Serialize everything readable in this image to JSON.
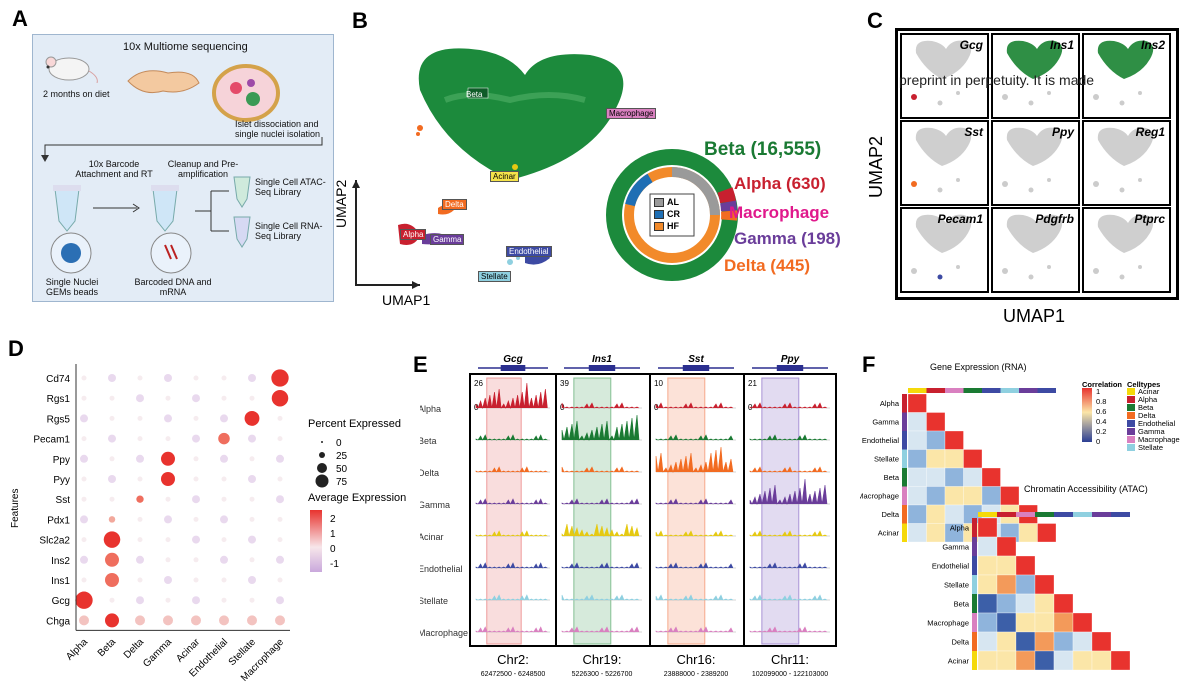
{
  "panels": {
    "a": "A",
    "b": "B",
    "c": "C",
    "d": "D",
    "e": "E",
    "f": "F"
  },
  "panel_a": {
    "title": "10x Multiome sequencing",
    "diet": "2 months on diet",
    "dissociation": "Islet dissociation and single nuclei isolation",
    "barcode": "10x Barcode Attachment and RT",
    "cleanup": "Cleanup and Pre-amplification",
    "atac": "Single Cell ATAC-Seq Library",
    "rna": "Single Cell RNA-Seq Library",
    "gems": "Single Nuclei GEMs beads",
    "dna": "Barcoded DNA and mRNA"
  },
  "panel_b": {
    "clusters": {
      "beta": "Beta",
      "macrophage": "Macrophage",
      "acinar": "Acinar",
      "delta": "Delta",
      "alpha": "Alpha",
      "gamma": "Gamma",
      "endothelial": "Endothelial",
      "stellate": "Stellate"
    },
    "umap1": "UMAP1",
    "umap2": "UMAP2",
    "donut_legend": [
      "AL",
      "CR",
      "HF"
    ],
    "counts": {
      "beta": "Beta (16,555)",
      "alpha": "Alpha (630)",
      "macrophage": "Macrophage",
      "gamma": "Gamma (198)",
      "delta": "Delta (445)"
    },
    "colors": {
      "beta": "#1a7a33",
      "alpha": "#c8202f",
      "macrophage": "#e0198c",
      "gamma": "#6a3d9a",
      "delta": "#f26b21"
    }
  },
  "panel_c": {
    "genes": [
      "Gcg",
      "Ins1",
      "Ins2",
      "Sst",
      "Ppy",
      "Reg1",
      "Pecam1",
      "Pdgfrb",
      "Ptprc"
    ],
    "overlay": "preprint in perpetuity. It is made",
    "umap1": "UMAP1",
    "umap2": "UMAP2"
  },
  "panel_d": {
    "features": [
      "Cd74",
      "Rgs1",
      "Rgs5",
      "Pecam1",
      "Ppy",
      "Pyy",
      "Sst",
      "Pdx1",
      "Slc2a2",
      "Ins2",
      "Ins1",
      "Gcg",
      "Chga"
    ],
    "celltypes": [
      "Alpha",
      "Beta",
      "Delta",
      "Gamma",
      "Acinar",
      "Endothelial",
      "Stellate",
      "Macrophage"
    ],
    "ylabel": "Features",
    "pct_title": "Percent Expressed",
    "pct_values": [
      "0",
      "25",
      "50",
      "75"
    ],
    "avg_title": "Average Expression",
    "avg_ticks": [
      "2",
      "1",
      "0",
      "-1"
    ]
  },
  "panel_e": {
    "genes": [
      "Gcg",
      "Ins1",
      "Sst",
      "Ppy"
    ],
    "scales": [
      "26",
      "39",
      "10",
      "21"
    ],
    "zero": "0",
    "tracks": [
      "Alpha",
      "Beta",
      "Delta",
      "Gamma",
      "Acinar",
      "Endothelial",
      "Stellate",
      "Macrophage"
    ],
    "chrom": [
      {
        "chr": "Chr2:",
        "range": "62472500 - 6248500"
      },
      {
        "chr": "Chr19:",
        "range": "5226300 - 5226700"
      },
      {
        "chr": "Chr16:",
        "range": "23888000 - 2389200"
      },
      {
        "chr": "Chr11:",
        "range": "102099000 - 122103000"
      }
    ]
  },
  "panel_f": {
    "rna_title": "Gene Expression (RNA)",
    "atac_title": "Chromatin Accessibility (ATAC)",
    "rows": [
      "Alpha",
      "Gamma",
      "Endothelial",
      "Stellate",
      "Beta",
      "Macrophage",
      "Delta",
      "Acinar"
    ],
    "corr_title": "Correlation",
    "corr_ticks": [
      "1",
      "0.8",
      "0.6",
      "0.4",
      "0.2",
      "0"
    ],
    "ct_title": "Celltypes",
    "ct_items": [
      "Acinar",
      "Alpha",
      "Beta",
      "Delta",
      "Endothelial",
      "Gamma",
      "Macrophage",
      "Stellate"
    ],
    "ct_colors": [
      "#f5d90a",
      "#c8202f",
      "#1a7a33",
      "#f26b21",
      "#3d4aa3",
      "#6a3d9a",
      "#d980c0",
      "#8fd0e0"
    ]
  }
}
